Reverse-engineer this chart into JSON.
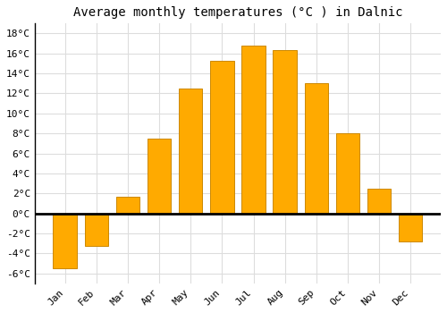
{
  "title": "Average monthly temperatures (°C ) in Dalnic",
  "months": [
    "Jan",
    "Feb",
    "Mar",
    "Apr",
    "May",
    "Jun",
    "Jul",
    "Aug",
    "Sep",
    "Oct",
    "Nov",
    "Dec"
  ],
  "temperatures": [
    -5.5,
    -3.3,
    1.7,
    7.5,
    12.5,
    15.3,
    16.8,
    16.3,
    13.0,
    8.0,
    2.5,
    -2.8
  ],
  "bar_color": "#FFAA00",
  "bar_edge_color": "#CC8800",
  "ylim": [
    -7,
    19
  ],
  "yticks": [
    -6,
    -4,
    -2,
    0,
    2,
    4,
    6,
    8,
    10,
    12,
    14,
    16,
    18
  ],
  "background_color": "#FFFFFF",
  "grid_color": "#DDDDDD",
  "title_fontsize": 10,
  "tick_fontsize": 8,
  "font_family": "monospace"
}
